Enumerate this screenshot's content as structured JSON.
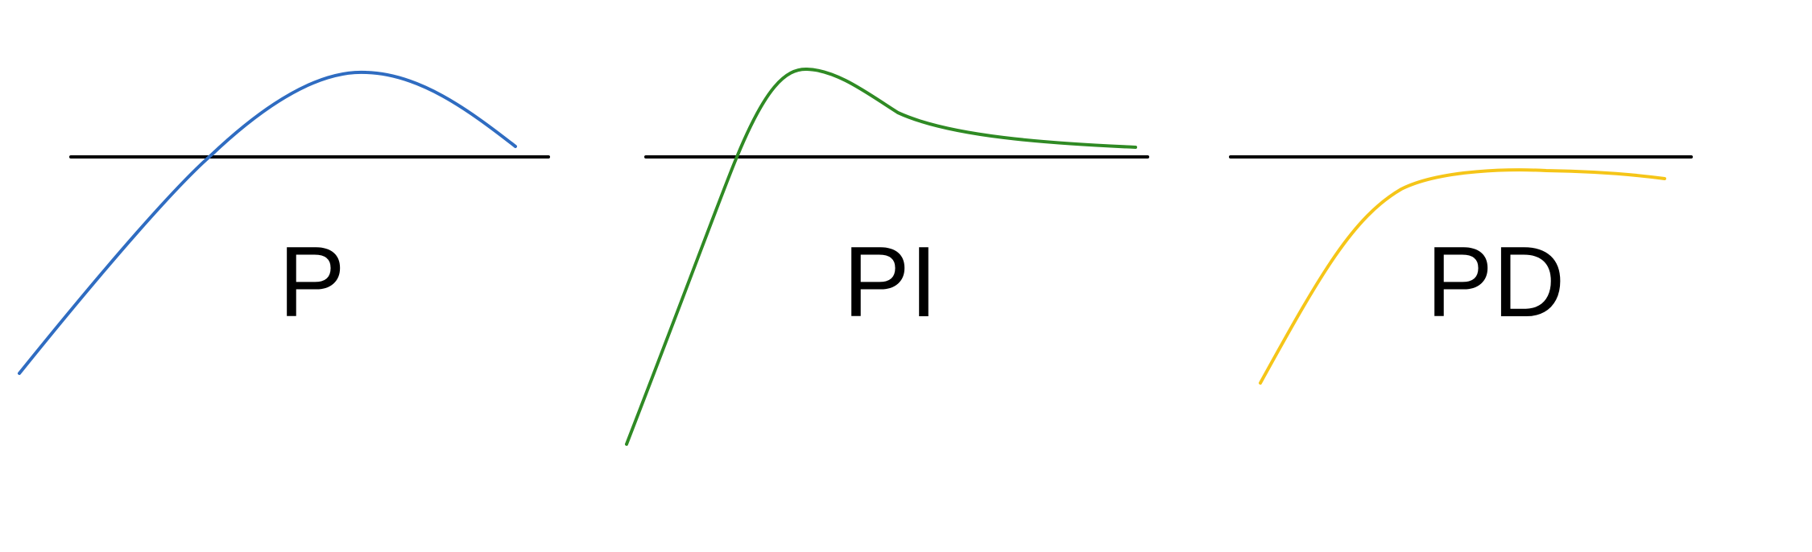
{
  "panels": [
    {
      "label": "P",
      "curve_color": "#2f6cc1"
    },
    {
      "label": "PI",
      "curve_color": "#2f8a24"
    },
    {
      "label": "PD",
      "curve_color": "#f5c518"
    }
  ],
  "reference_line_color": "#000000"
}
